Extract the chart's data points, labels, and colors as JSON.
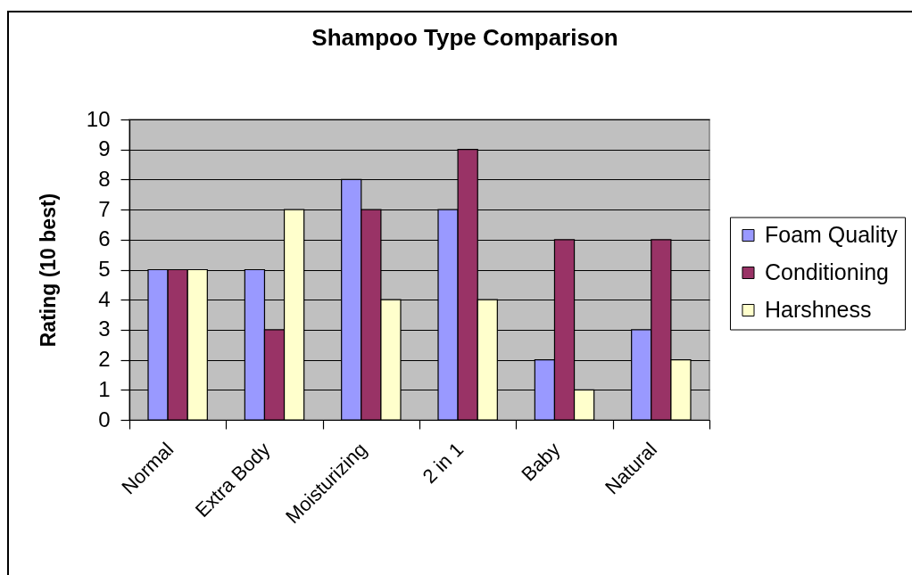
{
  "chart_data": {
    "type": "bar",
    "title": "Shampoo Type Comparison",
    "ylabel": "Rating (10 best)",
    "categories": [
      "Normal",
      "Extra Body",
      "Moisturizing",
      "2 in 1",
      "Baby",
      "Natural"
    ],
    "series": [
      {
        "name": "Foam Quality",
        "color": "#9999ff",
        "values": [
          5,
          5,
          8,
          7,
          2,
          3
        ]
      },
      {
        "name": "Conditioning",
        "color": "#993366",
        "values": [
          5,
          3,
          7,
          9,
          6,
          6
        ]
      },
      {
        "name": "Harshness",
        "color": "#ffffcc",
        "values": [
          5,
          7,
          4,
          4,
          1,
          2
        ]
      }
    ],
    "ylim": [
      0,
      10
    ],
    "yticks": [
      0,
      1,
      2,
      3,
      4,
      5,
      6,
      7,
      8,
      9,
      10
    ],
    "grid": "y",
    "legend": "right"
  }
}
